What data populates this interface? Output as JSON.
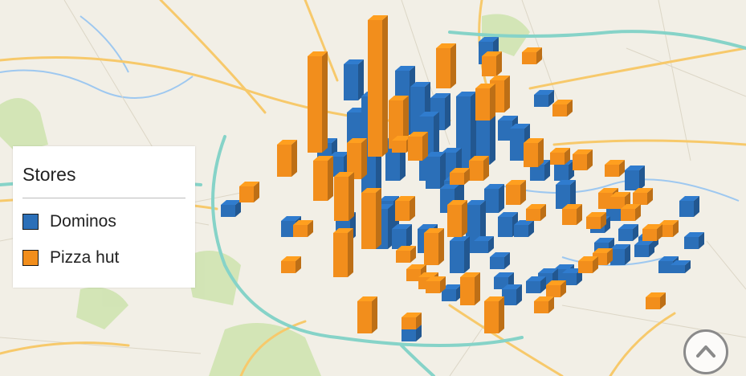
{
  "legend": {
    "title": "Stores",
    "items": [
      {
        "label": "Dominos",
        "color": "#2b6fb8"
      },
      {
        "label": "Pizza hut",
        "color": "#f28e1c"
      }
    ]
  },
  "colors": {
    "dominos": "#2b6fb8",
    "pizza_hut": "#f28e1c",
    "map_background": "#f2efe6",
    "major_road": "#f7c96b",
    "highway": "#86d3c8",
    "water": "#9ec8f0",
    "park": "#cfe3b0"
  },
  "nav": {
    "icon": "chevron-up-icon"
  }
}
